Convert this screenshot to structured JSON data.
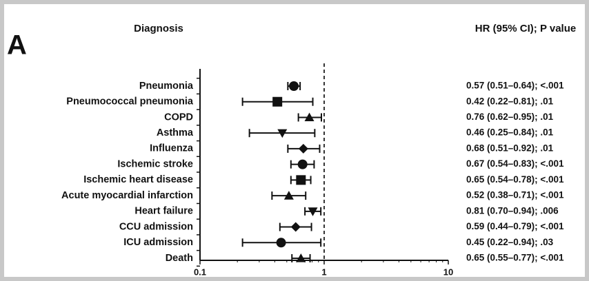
{
  "chart_data": {
    "type": "forest",
    "panel_label": "A",
    "left_header": "Diagnosis",
    "right_header": "HR (95% CI); P value",
    "categories": [
      "Pneumonia",
      "Pneumococcal pneumonia",
      "COPD",
      "Asthma",
      "Influenza",
      "Ischemic stroke",
      "Ischemic heart disease",
      "Acute myocardial infarction",
      "Heart failure",
      "CCU admission",
      "ICU admission",
      "Death"
    ],
    "values": [
      0.57,
      0.42,
      0.76,
      0.46,
      0.68,
      0.67,
      0.65,
      0.52,
      0.81,
      0.59,
      0.45,
      0.65
    ],
    "lower": [
      0.51,
      0.22,
      0.62,
      0.25,
      0.51,
      0.54,
      0.54,
      0.38,
      0.7,
      0.44,
      0.22,
      0.55
    ],
    "upper": [
      0.64,
      0.81,
      0.95,
      0.84,
      0.92,
      0.83,
      0.78,
      0.71,
      0.94,
      0.79,
      0.94,
      0.77
    ],
    "value_labels": [
      "0.57 (0.51–0.64); <.001",
      "0.42 (0.22–0.81); .01",
      "0.76 (0.62–0.95); .01",
      "0.46 (0.25–0.84); .01",
      "0.68 (0.51–0.92); .01",
      "0.67 (0.54–0.83); <.001",
      "0.65 (0.54–0.78); <.001",
      "0.52 (0.38–0.71); <.001",
      "0.81 (0.70–0.94); .006",
      "0.59 (0.44–0.79); <.001",
      "0.45 (0.22–0.94); .03",
      "0.65 (0.55–0.77); <.001"
    ],
    "markers": [
      "circle",
      "square",
      "triangle",
      "triangle-down",
      "diamond",
      "circle",
      "square",
      "triangle",
      "triangle-down",
      "diamond",
      "circle",
      "triangle"
    ],
    "xlim": [
      0.1,
      10
    ],
    "xticks": [
      0.1,
      1,
      10
    ],
    "log_x": true,
    "reference_line": 1,
    "color": "#111111"
  }
}
